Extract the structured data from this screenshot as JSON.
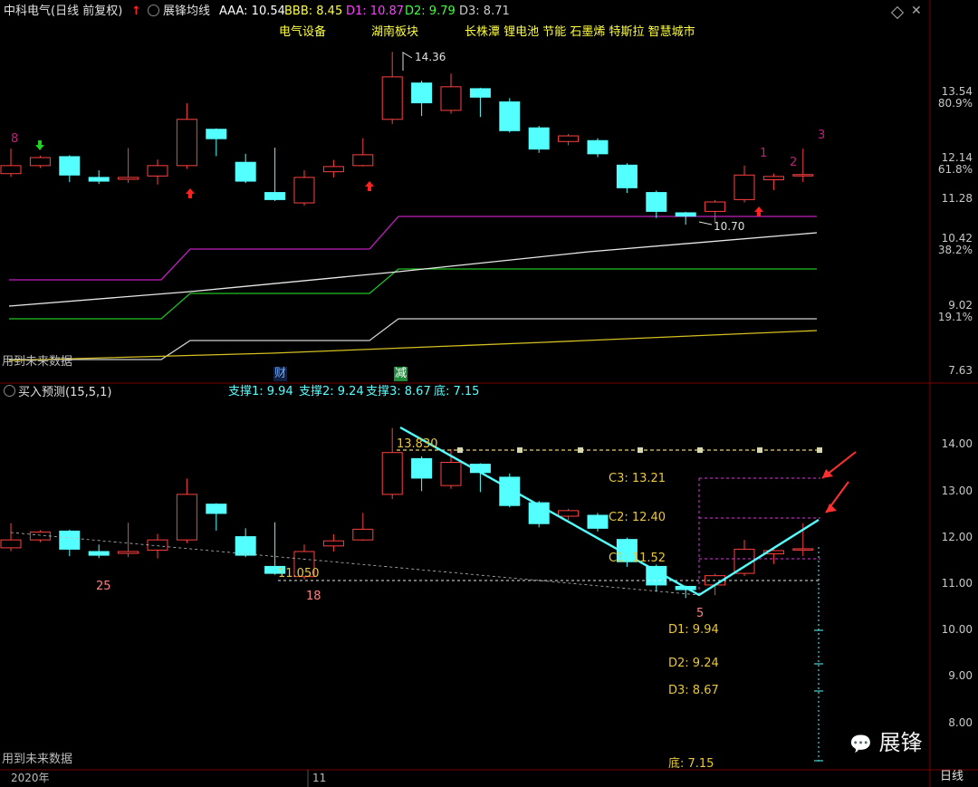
{
  "header": {
    "stock_title": "中科电气(日线 前复权)",
    "indicator_name": "展锋均线",
    "aaa": "AAA: 10.54",
    "bbb": "BBB: 8.45",
    "d1": "D1: 10.87",
    "d2": "D2: 9.79",
    "d3": "D3: 8.71"
  },
  "sectors": {
    "s1": "电气设备",
    "s2": "湖南板块",
    "s3": "长株潭 锂电池 节能 石墨烯 特斯拉 智慧城市"
  },
  "upper": {
    "high_label": "14.36",
    "low_label": "10.70",
    "future_text": "用到未来数据",
    "count_8": "8",
    "count_1": "1",
    "count_2": "2",
    "count_3": "3",
    "y_axis": [
      {
        "price": "13.54",
        "pct": "80.9%"
      },
      {
        "price": "12.14",
        "pct": "61.8%"
      },
      {
        "price": "11.28",
        "pct": ""
      },
      {
        "price": "10.42",
        "pct": "38.2%"
      },
      {
        "price": "9.02",
        "pct": "19.1%"
      },
      {
        "price": "7.63",
        "pct": ""
      }
    ],
    "badge_cai": "财",
    "badge_jian": "减"
  },
  "lower": {
    "indicator_name": "买入预测(15,5,1)",
    "support1": "支撑1: 9.94",
    "support2": "支撑2: 9.24",
    "support3": "支撑3: 8.67",
    "bottom": "底: 7.15",
    "top_label": "13.830",
    "c3": "C3: 13.21",
    "c2": "C2: 12.40",
    "c1": "C1: 11.52",
    "low_label": "11.050",
    "count_25": "25",
    "count_18": "18",
    "count_5": "5",
    "d1": "D1: 9.94",
    "d2": "D2: 9.24",
    "d3": "D3: 8.67",
    "bottom_label": "底: 7.15",
    "future_text": "用到未来数据",
    "y_axis": [
      "14.00",
      "13.00",
      "12.00",
      "11.00",
      "10.00",
      "9.00",
      "8.00"
    ]
  },
  "footer": {
    "year": "2020年",
    "month": "11",
    "period": "日线"
  },
  "watermark": "展锋",
  "colors": {
    "up": "#ff4040",
    "down": "#54ffff",
    "magenta": "#c020c0",
    "green": "#20c020",
    "yellow": "#d4c020",
    "white": "#e0e0e0",
    "header_aaa": "#ffffff",
    "header_bbb": "#ffff40",
    "header_d1": "#ff40ff",
    "header_d2": "#40ff40",
    "header_d3": "#cccccc"
  },
  "candles": [
    {
      "o": 11.78,
      "c": 11.95,
      "h": 12.31,
      "l": 11.71
    },
    {
      "o": 11.95,
      "c": 12.12,
      "h": 12.16,
      "l": 11.9
    },
    {
      "o": 12.14,
      "c": 11.75,
      "h": 12.17,
      "l": 11.6
    },
    {
      "o": 11.7,
      "c": 11.62,
      "h": 11.85,
      "l": 11.56
    },
    {
      "o": 11.66,
      "c": 11.7,
      "h": 12.32,
      "l": 11.58
    },
    {
      "o": 11.73,
      "c": 11.95,
      "h": 12.08,
      "l": 11.55
    },
    {
      "o": 11.95,
      "c": 12.93,
      "h": 13.27,
      "l": 11.88
    },
    {
      "o": 12.72,
      "c": 12.52,
      "h": 12.74,
      "l": 12.15
    },
    {
      "o": 12.02,
      "c": 11.62,
      "h": 12.2,
      "l": 11.58
    },
    {
      "o": 11.38,
      "c": 11.23,
      "h": 12.33,
      "l": 11.2
    },
    {
      "o": 11.16,
      "c": 11.7,
      "h": 11.85,
      "l": 11.1
    },
    {
      "o": 11.82,
      "c": 11.93,
      "h": 12.07,
      "l": 11.7
    },
    {
      "o": 11.95,
      "c": 12.18,
      "h": 12.53,
      "l": 11.93
    },
    {
      "o": 12.93,
      "c": 13.83,
      "h": 14.36,
      "l": 12.83
    },
    {
      "o": 13.7,
      "c": 13.28,
      "h": 13.75,
      "l": 13.0
    },
    {
      "o": 13.12,
      "c": 13.62,
      "h": 13.9,
      "l": 13.05
    },
    {
      "o": 13.58,
      "c": 13.4,
      "h": 13.6,
      "l": 12.98
    },
    {
      "o": 13.3,
      "c": 12.69,
      "h": 13.38,
      "l": 12.65
    },
    {
      "o": 12.75,
      "c": 12.3,
      "h": 12.79,
      "l": 12.22
    },
    {
      "o": 12.46,
      "c": 12.58,
      "h": 12.62,
      "l": 12.38
    },
    {
      "o": 12.48,
      "c": 12.2,
      "h": 12.53,
      "l": 12.13
    },
    {
      "o": 11.96,
      "c": 11.48,
      "h": 12.0,
      "l": 11.37
    },
    {
      "o": 11.38,
      "c": 10.98,
      "h": 11.42,
      "l": 10.84
    },
    {
      "o": 10.95,
      "c": 10.88,
      "h": 10.97,
      "l": 10.7
    },
    {
      "o": 10.98,
      "c": 11.18,
      "h": 11.22,
      "l": 10.76
    },
    {
      "o": 11.23,
      "c": 11.75,
      "h": 11.95,
      "l": 11.17
    },
    {
      "o": 11.65,
      "c": 11.72,
      "h": 11.78,
      "l": 11.43
    },
    {
      "o": 11.76,
      "c": 11.76,
      "h": 12.31,
      "l": 11.6
    }
  ]
}
